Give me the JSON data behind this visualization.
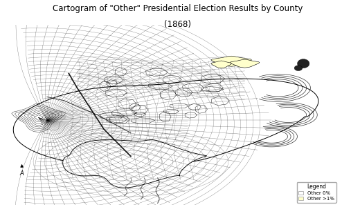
{
  "title_line1": "Cartogram of \"Other\" Presidential Election Results by County",
  "title_line2": "(1868)",
  "background_color": "#ffffff",
  "legend_title": "Legend",
  "legend_items": [
    {
      "label": "Other 0%",
      "color": "#ffffff",
      "edgecolor": "#999999"
    },
    {
      "label": "Other >1%",
      "color": "#ffffcc",
      "edgecolor": "#999999"
    }
  ],
  "title_fontsize": 8.5,
  "legend_fontsize": 5.0,
  "fig_width": 4.94,
  "fig_height": 3.0,
  "dpi": 100
}
